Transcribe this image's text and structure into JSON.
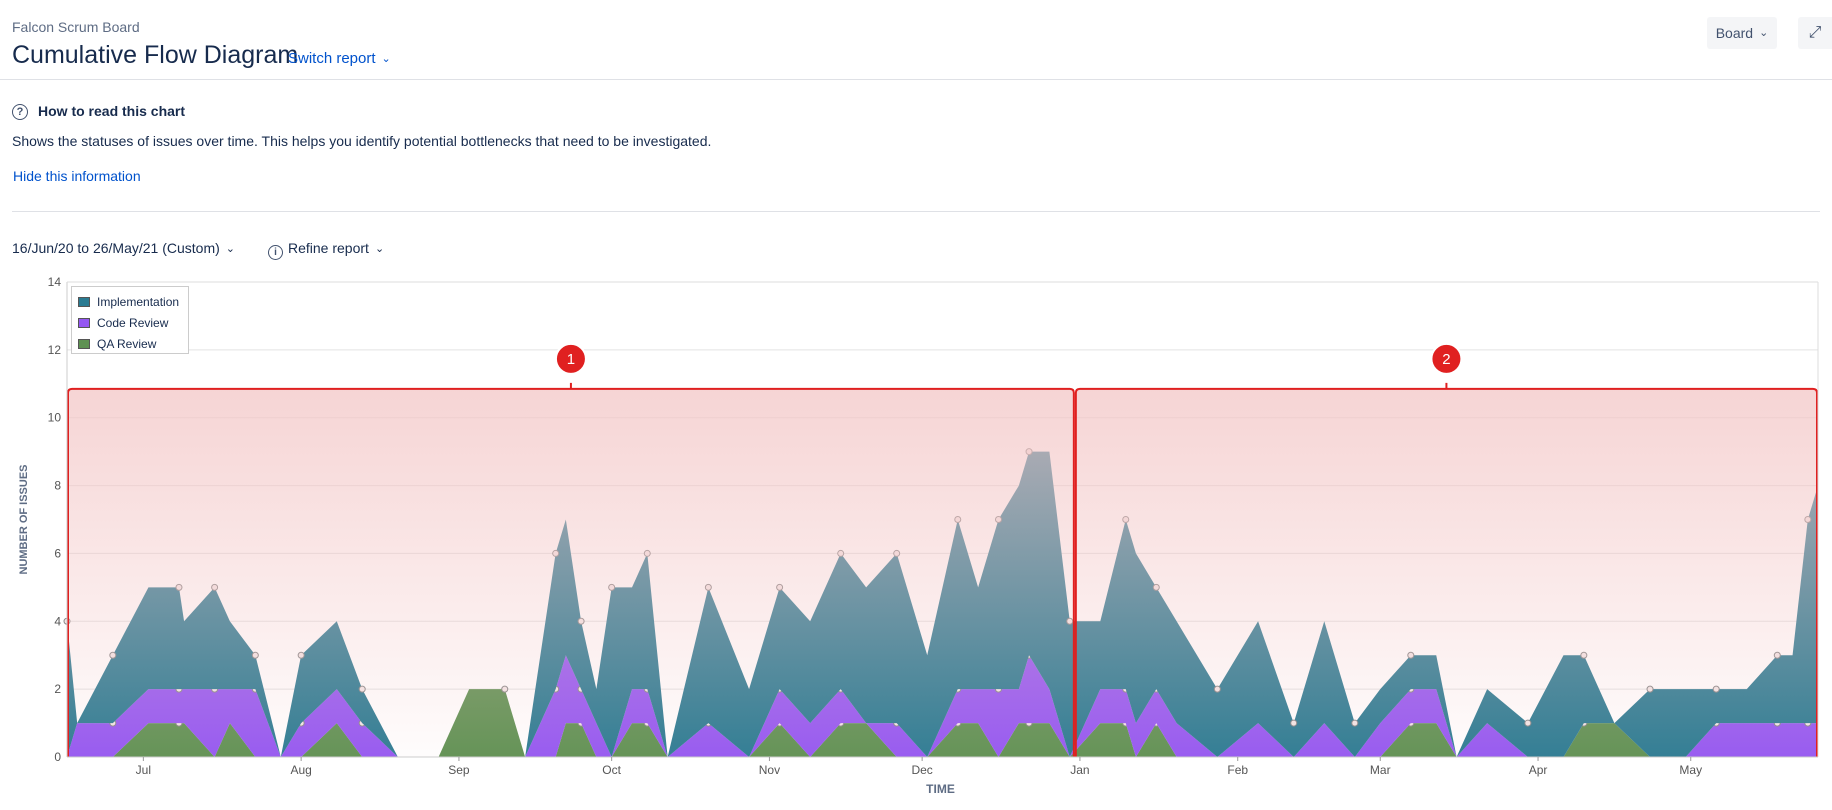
{
  "header": {
    "breadcrumb": "Falcon Scrum Board",
    "title": "Cumulative Flow Diagram",
    "switch_report": "Switch report",
    "board_button": "Board",
    "expand_icon": "expand-icon"
  },
  "help": {
    "title": "How to read this chart",
    "description": "Shows the statuses of issues over time. This helps you identify potential bottlenecks that need to be investigated.",
    "hide_link": "Hide this information"
  },
  "controls": {
    "date_range": "16/Jun/20 to 26/May/21 (Custom)",
    "refine_report": "Refine report"
  },
  "colors": {
    "implementation": "#2a7b92",
    "code_review": "#9457f2",
    "qa_review": "#5e9152",
    "callout": "#e02020",
    "callout_fill": "#f3c6c6"
  },
  "chart_data": {
    "type": "area",
    "stacked": true,
    "xlabel": "TIME",
    "ylabel": "NUMBER OF ISSUES",
    "ylim": [
      0,
      14
    ],
    "y_ticks": [
      0,
      2,
      4,
      6,
      8,
      10,
      12,
      14
    ],
    "x_range": [
      "2020-06-16",
      "2021-05-26"
    ],
    "x_ticks": [
      {
        "label": "Jul",
        "date": "2020-07-01"
      },
      {
        "label": "Aug",
        "date": "2020-08-01"
      },
      {
        "label": "Sep",
        "date": "2020-09-01"
      },
      {
        "label": "Oct",
        "date": "2020-10-01"
      },
      {
        "label": "Nov",
        "date": "2020-11-01"
      },
      {
        "label": "Dec",
        "date": "2020-12-01"
      },
      {
        "label": "Jan",
        "date": "2021-01-01"
      },
      {
        "label": "Feb",
        "date": "2021-02-01"
      },
      {
        "label": "Mar",
        "date": "2021-03-01"
      },
      {
        "label": "Apr",
        "date": "2021-04-01"
      },
      {
        "label": "May",
        "date": "2021-05-01"
      }
    ],
    "legend": {
      "position": "top-left",
      "entries": [
        "Implementation",
        "Code Review",
        "QA Review"
      ]
    },
    "grid": true,
    "x": [
      "2020-06-16",
      "2020-06-18",
      "2020-06-25",
      "2020-07-02",
      "2020-07-08",
      "2020-07-09",
      "2020-07-15",
      "2020-07-18",
      "2020-07-23",
      "2020-07-28",
      "2020-08-01",
      "2020-08-08",
      "2020-08-13",
      "2020-08-20",
      "2020-08-28",
      "2020-09-03",
      "2020-09-10",
      "2020-09-14",
      "2020-09-20",
      "2020-09-22",
      "2020-09-25",
      "2020-09-28",
      "2020-10-01",
      "2020-10-05",
      "2020-10-08",
      "2020-10-12",
      "2020-10-20",
      "2020-10-28",
      "2020-11-03",
      "2020-11-09",
      "2020-11-15",
      "2020-11-20",
      "2020-11-26",
      "2020-12-02",
      "2020-12-08",
      "2020-12-12",
      "2020-12-16",
      "2020-12-20",
      "2020-12-22",
      "2020-12-26",
      "2020-12-30",
      "2021-01-05",
      "2021-01-10",
      "2021-01-12",
      "2021-01-16",
      "2021-01-20",
      "2021-01-28",
      "2021-02-05",
      "2021-02-12",
      "2021-02-18",
      "2021-02-24",
      "2021-03-01",
      "2021-03-07",
      "2021-03-12",
      "2021-03-16",
      "2021-03-22",
      "2021-03-30",
      "2021-04-06",
      "2021-04-10",
      "2021-04-16",
      "2021-04-23",
      "2021-04-30",
      "2021-05-06",
      "2021-05-12",
      "2021-05-18",
      "2021-05-21",
      "2021-05-24",
      "2021-05-26"
    ],
    "series": [
      {
        "name": "QA Review",
        "values": [
          0,
          0,
          0,
          1,
          1,
          1,
          0,
          1,
          0,
          0,
          0,
          1,
          0,
          0,
          0,
          2,
          2,
          0,
          0,
          1,
          1,
          0,
          0,
          1,
          1,
          0,
          0,
          0,
          1,
          0,
          1,
          1,
          0,
          0,
          1,
          1,
          0,
          1,
          1,
          1,
          0,
          1,
          1,
          0,
          1,
          0,
          0,
          0,
          0,
          0,
          0,
          0,
          1,
          1,
          0,
          0,
          0,
          0,
          1,
          1,
          0,
          0,
          0,
          0,
          0,
          0,
          0,
          0
        ]
      },
      {
        "name": "Code Review",
        "values": [
          0,
          1,
          1,
          1,
          1,
          1,
          2,
          1,
          2,
          0,
          1,
          1,
          1,
          0,
          0,
          0,
          0,
          0,
          2,
          2,
          1,
          1,
          0,
          1,
          1,
          0,
          1,
          0,
          1,
          1,
          1,
          0,
          1,
          0,
          1,
          1,
          2,
          1,
          2,
          1,
          0,
          1,
          1,
          1,
          1,
          1,
          0,
          1,
          0,
          1,
          0,
          1,
          1,
          1,
          0,
          1,
          0,
          0,
          0,
          0,
          0,
          0,
          1,
          1,
          1,
          1,
          1,
          1
        ]
      },
      {
        "name": "Implementation",
        "values": [
          4,
          0,
          2,
          3,
          3,
          2,
          3,
          2,
          1,
          0,
          2,
          2,
          1,
          0,
          0,
          0,
          0,
          0,
          4,
          4,
          2,
          1,
          5,
          3,
          4,
          0,
          4,
          2,
          3,
          3,
          4,
          4,
          5,
          3,
          5,
          3,
          5,
          6,
          6,
          7,
          4,
          2,
          5,
          5,
          3,
          3,
          2,
          3,
          1,
          3,
          1,
          1,
          1,
          1,
          0,
          1,
          1,
          3,
          2,
          0,
          2,
          2,
          1,
          1,
          2,
          2,
          6,
          7
        ]
      }
    ],
    "annotations": [
      {
        "label": "1",
        "from": "2020-06-16",
        "to": "2020-12-31"
      },
      {
        "label": "2",
        "from": "2020-12-31",
        "to": "2021-05-26"
      }
    ]
  }
}
